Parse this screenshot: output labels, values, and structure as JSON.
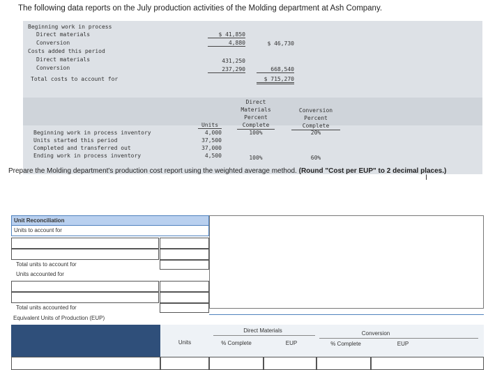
{
  "intro": "The following data reports on the July production activities of the Molding department at Ash Company.",
  "costs": {
    "beginning_wip": "Beginning work in process",
    "direct_materials_1": "Direct materials",
    "dm_begin": "$ 41,850",
    "conversion_1": "Conversion",
    "conv_begin": "4,880",
    "begin_total": "$ 46,730",
    "costs_added": "Costs added this period",
    "direct_materials_2": "Direct materials",
    "dm_added": "431,250",
    "conversion_2": "Conversion",
    "conv_added": "237,290",
    "added_total": "668,540",
    "total_costs_label": "Total costs to account for",
    "total_costs": "$ 715,270"
  },
  "units_table": {
    "col_units": "Units",
    "col_dm": [
      "Direct",
      "Materials",
      "Percent",
      "Complete"
    ],
    "col_conv": [
      "Conversion",
      "Percent",
      "Complete"
    ],
    "rows": [
      {
        "label": "Beginning work in process inventory",
        "units": "4,000",
        "dm": "100%",
        "conv": "20%"
      },
      {
        "label": "Units started this period",
        "units": "37,500",
        "dm": "",
        "conv": ""
      },
      {
        "label": "Completed and transferred out",
        "units": "37,000",
        "dm": "",
        "conv": ""
      },
      {
        "label": "Ending work in process inventory",
        "units": "4,500",
        "dm": "100%",
        "conv": "60%"
      }
    ]
  },
  "prepare": {
    "text": "Prepare the Molding department's production cost report using the weighted average method.",
    "bold": "(Round \"Cost per EUP\" to 2 decimal places.)"
  },
  "worksheet": {
    "unit_reconciliation": "Unit Reconciliation",
    "units_to_account_for": "Units to account for",
    "total_units_to_account_for": "Total units to account for",
    "units_accounted_for": "Units accounted for",
    "total_units_accounted_for": "Total units accounted for",
    "eup_label": "Equivalent Units of Production (EUP)",
    "hdr_units": "Units",
    "hdr_dm": "Direct Materials",
    "hdr_conv": "Conversion",
    "hdr_pct_complete_dm": "% Complete",
    "hdr_eup_dm": "EUP",
    "hdr_pct_complete_conv": "% Complete",
    "hdr_eup_conv": "EUP"
  }
}
